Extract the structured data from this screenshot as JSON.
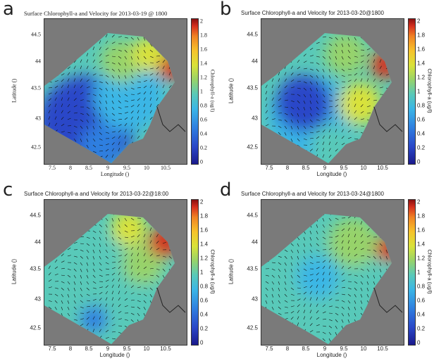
{
  "panels": [
    {
      "letter": "a",
      "title": "Surface Chlorophyll-a and Velocity for 2013-03-19 @ 1800",
      "xlabel": "Longitude ()",
      "ylabel": "Latitude ()",
      "cbar_label": "Chlorophyll-a (ug/l)",
      "serif": true
    },
    {
      "letter": "b",
      "title": "Surface Chlorophyll-a and Velocity for 2013-03-20@1800",
      "xlabel": "Longitude ()",
      "ylabel": "Latitude ()",
      "cbar_label": "Chlorophyll-a (ug/l)",
      "serif": false
    },
    {
      "letter": "c",
      "title": "Surface Chlorophyll-a and Velocity for 2013-03-22@18:00",
      "xlabel": "Longitude ()",
      "ylabel": "Latitude ()",
      "cbar_label": "Chlorophyll-a (ug/l)",
      "serif": false
    },
    {
      "letter": "d",
      "title": "Surface Chlorophyll-a and Velocity for 2013-03-24@1800",
      "xlabel": "Longitude ()",
      "ylabel": "Latitude ()",
      "cbar_label": "Chlorophyll-a (ug/l)",
      "serif": false
    }
  ],
  "y_ticks": [
    "44.5",
    "44",
    "43.5",
    "43",
    "42.5"
  ],
  "x_ticks": [
    "7.5",
    "8",
    "8.5",
    "9",
    "9.5",
    "10",
    "10.5"
  ],
  "c_ticks": [
    "2",
    "1.8",
    "1.6",
    "1.4",
    "1.2",
    "1",
    "0.8",
    "0.6",
    "0.4",
    "0.2",
    "0"
  ],
  "colors": {
    "land": "#7a7a7a",
    "low": "#2a47c8",
    "mid": "#59c9b9",
    "high": "#f6c32b",
    "max": "#8a1010"
  }
}
